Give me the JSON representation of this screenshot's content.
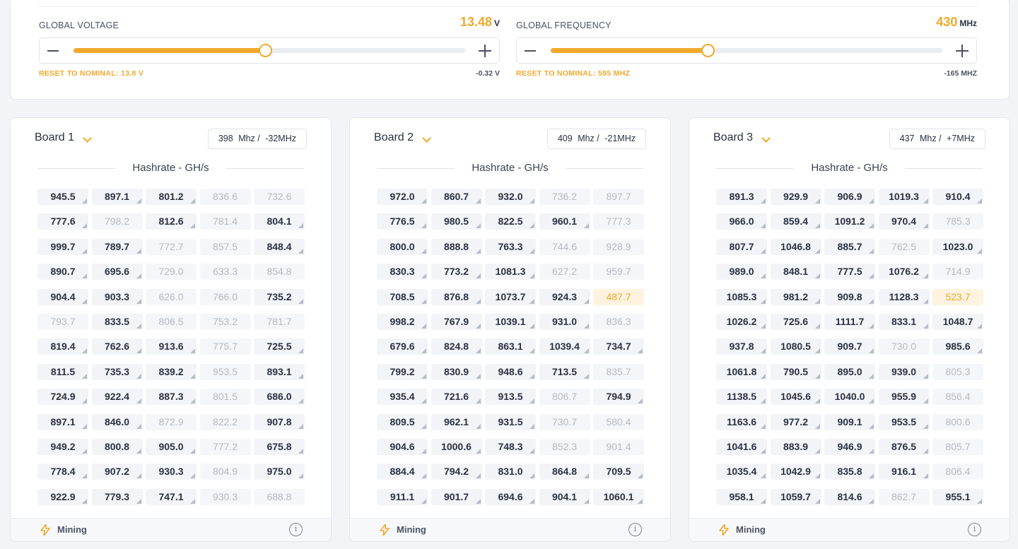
{
  "voltage": {
    "label": "GLOBAL VOLTAGE",
    "value": "13.48",
    "unit": "V",
    "reset_label": "RESET TO NOMINAL: 13.8 V",
    "delta": "-0.32 V",
    "level_fraction": 0.49
  },
  "frequency": {
    "label": "GLOBAL FREQUENCY",
    "value": "430",
    "unit": "MHz",
    "reset_label": "RESET TO NOMINAL: 595 MHZ",
    "delta": "-165 MHZ",
    "level_fraction": 0.4
  },
  "colors": {
    "accent": "#f0a92c",
    "text": "#2a3140",
    "muted": "#b4b9c3",
    "warn_bg": "#fdf3df"
  },
  "boards": [
    {
      "title": "Board 1",
      "freq": "398",
      "freq_unit": "Mhz /",
      "freq_delta": "-32MHz",
      "hashrate_title": "Hashrate - GH/s",
      "status": "Mining",
      "cells": [
        [
          "945.5",
          "897.1",
          "801.2",
          "836.6",
          "732.6"
        ],
        [
          "777.6",
          "798.2",
          "812.6",
          "781.4",
          "804.1"
        ],
        [
          "999.7",
          "789.7",
          "772.7",
          "857.5",
          "848.4"
        ],
        [
          "890.7",
          "695.6",
          "729.0",
          "633.3",
          "854.8"
        ],
        [
          "904.4",
          "903.3",
          "626.0",
          "766.0",
          "735.2"
        ],
        [
          "793.7",
          "833.5",
          "806.5",
          "753.2",
          "781.7"
        ],
        [
          "819.4",
          "762.6",
          "913.6",
          "775.7",
          "725.5"
        ],
        [
          "811.5",
          "735.3",
          "839.2",
          "953.5",
          "893.1"
        ],
        [
          "724.9",
          "922.4",
          "887.3",
          "801.5",
          "686.0"
        ],
        [
          "897.1",
          "846.0",
          "872.9",
          "822.2",
          "907.8"
        ],
        [
          "949.2",
          "800.8",
          "905.0",
          "777.2",
          "675.8"
        ],
        [
          "778.4",
          "907.2",
          "930.3",
          "804.9",
          "975.0"
        ],
        [
          "922.9",
          "779.3",
          "747.1",
          "930.3",
          "688.8"
        ]
      ],
      "states": [
        [
          "on",
          "on",
          "on",
          "off",
          "off"
        ],
        [
          "on",
          "off",
          "on",
          "off",
          "on"
        ],
        [
          "on",
          "on",
          "off",
          "off",
          "on"
        ],
        [
          "on",
          "on",
          "off",
          "off",
          "off"
        ],
        [
          "on",
          "on",
          "off",
          "off",
          "on"
        ],
        [
          "off",
          "on",
          "off",
          "off",
          "off"
        ],
        [
          "on",
          "on",
          "on",
          "off",
          "on"
        ],
        [
          "on",
          "on",
          "on",
          "off",
          "on"
        ],
        [
          "on",
          "on",
          "on",
          "off",
          "on"
        ],
        [
          "on",
          "on",
          "off",
          "off",
          "on"
        ],
        [
          "on",
          "on",
          "on",
          "off",
          "on"
        ],
        [
          "on",
          "on",
          "on",
          "off",
          "on"
        ],
        [
          "on",
          "on",
          "on",
          "off",
          "off"
        ]
      ]
    },
    {
      "title": "Board 2",
      "freq": "409",
      "freq_unit": "Mhz /",
      "freq_delta": "-21MHz",
      "hashrate_title": "Hashrate - GH/s",
      "status": "Mining",
      "cells": [
        [
          "972.0",
          "860.7",
          "932.0",
          "736.2",
          "897.7"
        ],
        [
          "776.5",
          "980.5",
          "822.5",
          "960.1",
          "777.3"
        ],
        [
          "800.0",
          "888.8",
          "763.3",
          "744.6",
          "928.9"
        ],
        [
          "830.3",
          "773.2",
          "1081.3",
          "627.2",
          "959.7"
        ],
        [
          "708.5",
          "876.8",
          "1073.7",
          "924.3",
          "487.7"
        ],
        [
          "998.2",
          "767.9",
          "1039.1",
          "931.0",
          "836.3"
        ],
        [
          "679.6",
          "824.8",
          "863.1",
          "1039.4",
          "734.7"
        ],
        [
          "799.2",
          "830.9",
          "948.6",
          "713.5",
          "835.7"
        ],
        [
          "935.4",
          "721.6",
          "913.5",
          "806.7",
          "794.9"
        ],
        [
          "809.5",
          "962.1",
          "931.5",
          "730.7",
          "580.4"
        ],
        [
          "904.6",
          "1000.6",
          "748.3",
          "852.3",
          "901.4"
        ],
        [
          "884.4",
          "794.2",
          "831.0",
          "864.8",
          "709.5"
        ],
        [
          "911.1",
          "901.7",
          "694.6",
          "904.1",
          "1060.1"
        ]
      ],
      "states": [
        [
          "on",
          "on",
          "on",
          "off",
          "off"
        ],
        [
          "on",
          "on",
          "on",
          "on",
          "off"
        ],
        [
          "on",
          "on",
          "on",
          "off",
          "off"
        ],
        [
          "on",
          "on",
          "on",
          "off",
          "off"
        ],
        [
          "on",
          "on",
          "on",
          "on",
          "warn"
        ],
        [
          "on",
          "on",
          "on",
          "on",
          "off"
        ],
        [
          "on",
          "on",
          "on",
          "on",
          "on"
        ],
        [
          "on",
          "on",
          "on",
          "on",
          "off"
        ],
        [
          "on",
          "on",
          "on",
          "off",
          "on"
        ],
        [
          "on",
          "on",
          "on",
          "off",
          "off"
        ],
        [
          "on",
          "on",
          "on",
          "off",
          "off"
        ],
        [
          "on",
          "on",
          "on",
          "on",
          "on"
        ],
        [
          "on",
          "on",
          "on",
          "on",
          "on"
        ]
      ]
    },
    {
      "title": "Board 3",
      "freq": "437",
      "freq_unit": "Mhz /",
      "freq_delta": "+7MHz",
      "hashrate_title": "Hashrate - GH/s",
      "status": "Mining",
      "cells": [
        [
          "891.3",
          "929.9",
          "906.9",
          "1019.3",
          "910.4"
        ],
        [
          "966.0",
          "859.4",
          "1091.2",
          "970.4",
          "785.3"
        ],
        [
          "807.7",
          "1046.8",
          "885.7",
          "762.5",
          "1023.0"
        ],
        [
          "989.0",
          "848.1",
          "777.5",
          "1076.2",
          "714.9"
        ],
        [
          "1085.3",
          "981.2",
          "909.8",
          "1128.3",
          "523.7"
        ],
        [
          "1026.2",
          "725.6",
          "1111.7",
          "833.1",
          "1048.7"
        ],
        [
          "937.8",
          "1080.5",
          "909.7",
          "730.0",
          "985.6"
        ],
        [
          "1061.8",
          "790.5",
          "895.0",
          "939.0",
          "805.3"
        ],
        [
          "1138.5",
          "1045.6",
          "1040.0",
          "955.9",
          "856.4"
        ],
        [
          "1163.6",
          "977.2",
          "909.1",
          "953.5",
          "800.6"
        ],
        [
          "1041.6",
          "883.9",
          "946.9",
          "876.5",
          "805.7"
        ],
        [
          "1035.4",
          "1042.9",
          "835.8",
          "916.1",
          "806.4"
        ],
        [
          "958.1",
          "1059.7",
          "814.6",
          "862.7",
          "955.1"
        ]
      ],
      "states": [
        [
          "on",
          "on",
          "on",
          "on",
          "on"
        ],
        [
          "on",
          "on",
          "on",
          "on",
          "off"
        ],
        [
          "on",
          "on",
          "on",
          "off",
          "on"
        ],
        [
          "on",
          "on",
          "on",
          "on",
          "off"
        ],
        [
          "on",
          "on",
          "on",
          "on",
          "warn"
        ],
        [
          "on",
          "on",
          "on",
          "on",
          "on"
        ],
        [
          "on",
          "on",
          "on",
          "off",
          "on"
        ],
        [
          "on",
          "on",
          "on",
          "on",
          "off"
        ],
        [
          "on",
          "on",
          "on",
          "on",
          "off"
        ],
        [
          "on",
          "on",
          "on",
          "on",
          "off"
        ],
        [
          "on",
          "on",
          "on",
          "on",
          "off"
        ],
        [
          "on",
          "on",
          "on",
          "on",
          "off"
        ],
        [
          "on",
          "on",
          "on",
          "off",
          "on"
        ]
      ]
    }
  ]
}
